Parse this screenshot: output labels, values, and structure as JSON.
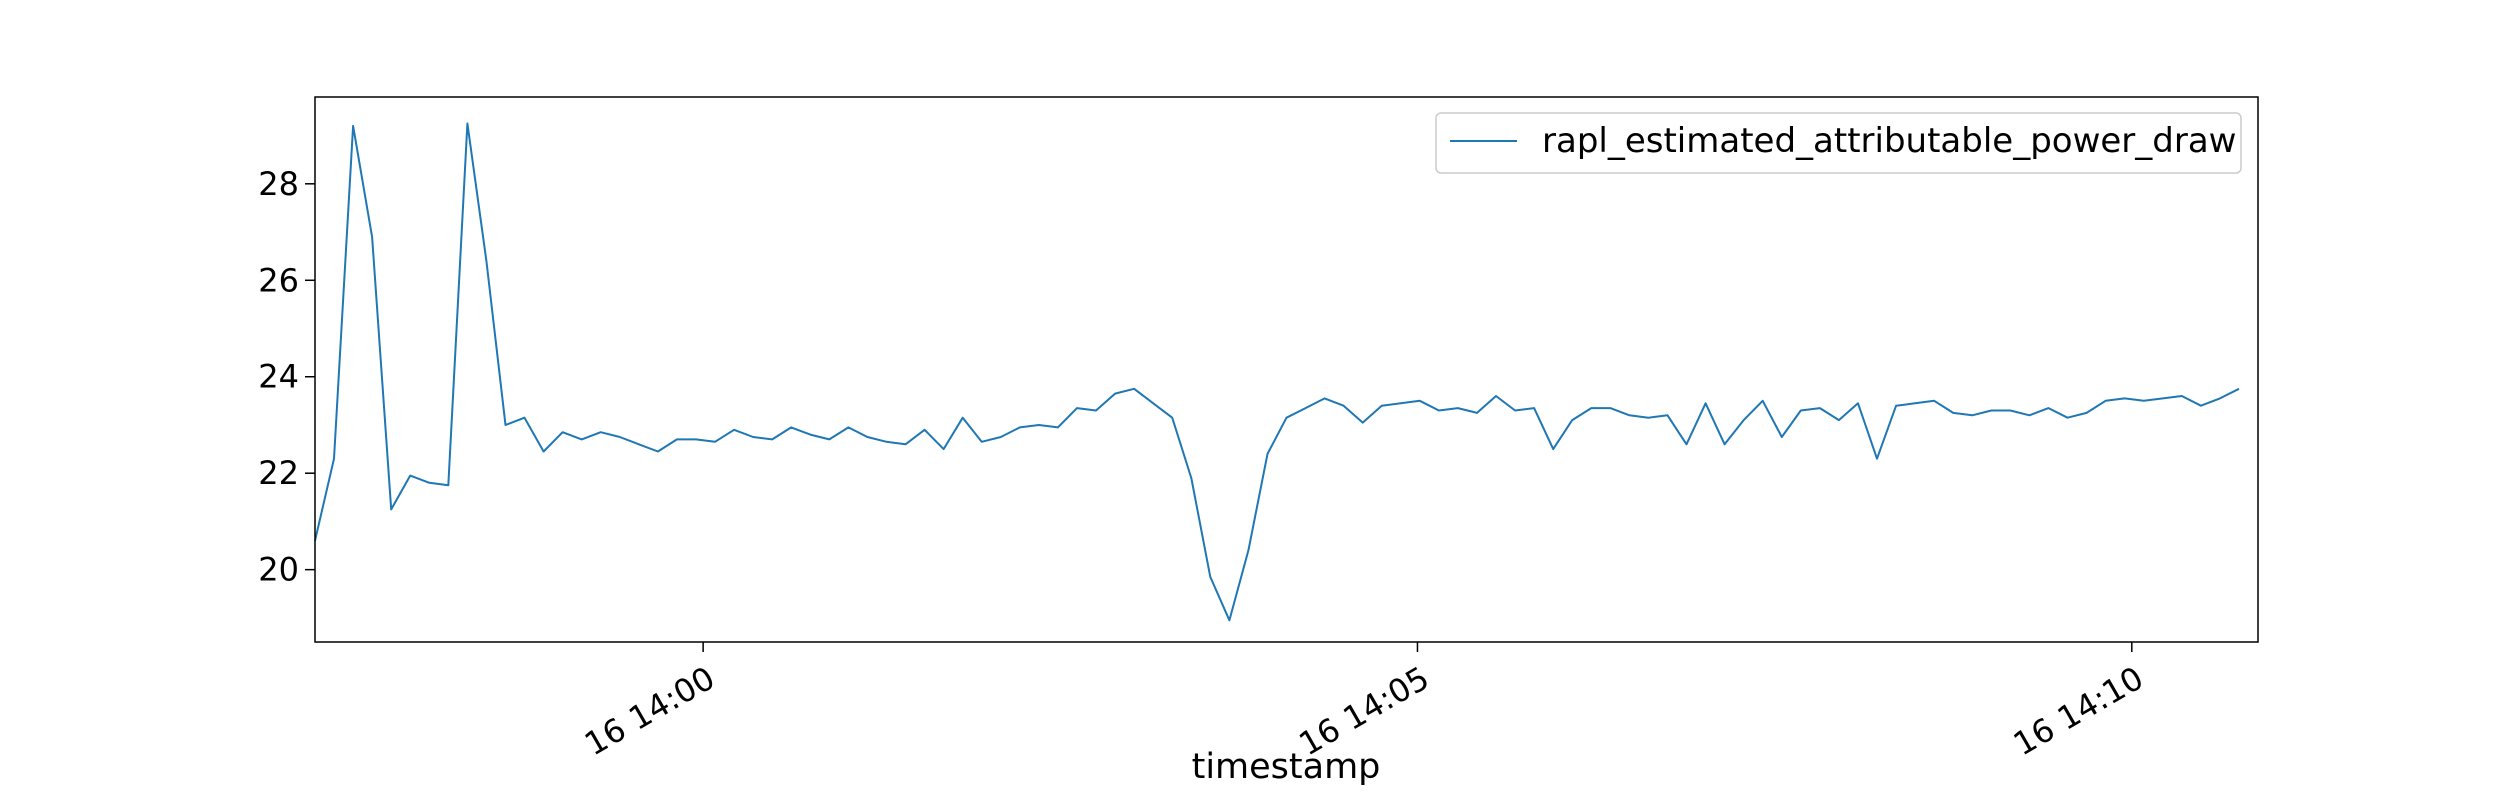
{
  "chart_data": {
    "type": "line",
    "title": "",
    "xlabel": "timestamp",
    "ylabel": "",
    "grid": false,
    "legend_position": "top-right",
    "color": "#1f77b4",
    "x_start": "16 13:57:17",
    "x_step_seconds": 8,
    "xlim": [
      "16 13:57:17",
      "16 14:10:53"
    ],
    "ylim": [
      18.5,
      29.8
    ],
    "x_ticks": [
      {
        "time": "16 14:00",
        "label": "16 14:00"
      },
      {
        "time": "16 14:05",
        "label": "16 14:05"
      },
      {
        "time": "16 14:10",
        "label": "16 14:10"
      }
    ],
    "y_ticks": [
      {
        "value": 20,
        "label": "20"
      },
      {
        "value": 22,
        "label": "22"
      },
      {
        "value": 24,
        "label": "24"
      },
      {
        "value": 26,
        "label": "26"
      },
      {
        "value": 28,
        "label": "28"
      }
    ],
    "series": [
      {
        "name": "rapl_estimated_attributable_power_draw",
        "values": [
          20.6,
          22.3,
          29.2,
          26.9,
          21.25,
          21.95,
          21.8,
          21.75,
          29.25,
          26.4,
          23.0,
          23.15,
          22.45,
          22.85,
          22.7,
          22.85,
          22.75,
          22.6,
          22.45,
          22.7,
          22.7,
          22.65,
          22.9,
          22.75,
          22.7,
          22.95,
          22.8,
          22.7,
          22.95,
          22.75,
          22.65,
          22.6,
          22.9,
          22.5,
          23.15,
          22.65,
          22.75,
          22.95,
          23.0,
          22.95,
          23.35,
          23.3,
          23.65,
          23.75,
          23.45,
          23.15,
          21.9,
          19.85,
          18.95,
          20.4,
          22.4,
          23.15,
          23.35,
          23.55,
          23.4,
          23.05,
          23.4,
          23.45,
          23.5,
          23.3,
          23.35,
          23.25,
          23.6,
          23.3,
          23.35,
          22.5,
          23.1,
          23.35,
          23.35,
          23.2,
          23.15,
          23.2,
          22.6,
          23.45,
          22.6,
          23.1,
          23.5,
          22.75,
          23.3,
          23.35,
          23.1,
          23.45,
          22.3,
          23.4,
          23.45,
          23.5,
          23.25,
          23.2,
          23.3,
          23.3,
          23.2,
          23.35,
          23.15,
          23.25,
          23.5,
          23.55,
          23.5,
          23.55,
          23.6,
          23.4,
          23.55,
          23.75
        ]
      }
    ]
  }
}
